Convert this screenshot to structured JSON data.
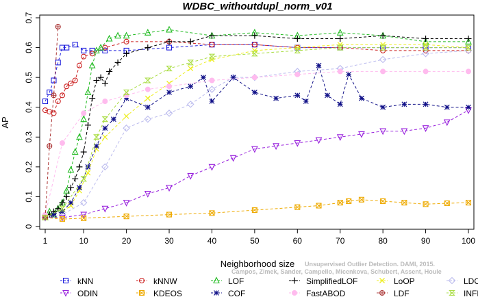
{
  "chart_data": {
    "type": "line",
    "title": "WDBC_withoutdupl_norm_v01",
    "xlabel": "Neighborhood size",
    "ylabel": "AP",
    "xlim": [
      1,
      100
    ],
    "ylim": [
      0,
      0.7
    ],
    "xticks": [
      1,
      10,
      20,
      30,
      40,
      50,
      60,
      70,
      80,
      90,
      100
    ],
    "yticks": [
      0,
      0.1,
      0.2,
      0.3,
      0.4,
      0.5,
      0.6,
      0.7
    ],
    "grid": false,
    "legend_position": "bottom",
    "watermark": [
      "Unsupervised Outlier Detection. DAMI, 2015.",
      "Campos, Zimek, Sander, Campello, Micenkova, Schubert, Assent, Houle"
    ],
    "series": [
      {
        "name": "kNN",
        "color": "#2020dd",
        "marker": "square",
        "x": [
          1,
          2,
          3,
          4,
          5,
          6,
          8,
          10,
          12,
          15,
          20,
          30,
          40,
          50,
          60,
          70,
          80,
          90,
          100
        ],
        "y": [
          0.42,
          0.45,
          0.49,
          0.55,
          0.6,
          0.6,
          0.61,
          0.59,
          0.59,
          0.59,
          0.59,
          0.6,
          0.61,
          0.61,
          0.6,
          0.6,
          0.6,
          0.6,
          0.6
        ]
      },
      {
        "name": "kNNW",
        "color": "#cc2222",
        "marker": "circle",
        "x": [
          1,
          2,
          3,
          4,
          5,
          6,
          7,
          8,
          9,
          10,
          12,
          15,
          20,
          30,
          40,
          50,
          60,
          70,
          80,
          90,
          100
        ],
        "y": [
          0.39,
          0.385,
          0.38,
          0.42,
          0.44,
          0.47,
          0.48,
          0.49,
          0.54,
          0.57,
          0.58,
          0.6,
          0.62,
          0.62,
          0.61,
          0.61,
          0.6,
          0.6,
          0.59,
          0.59,
          0.59
        ]
      },
      {
        "name": "LOF",
        "color": "#22bb22",
        "marker": "triangle",
        "x": [
          1,
          2,
          3,
          4,
          5,
          6,
          7,
          8,
          9,
          10,
          11,
          12,
          13,
          14,
          16,
          18,
          20,
          25,
          30,
          40,
          50,
          60,
          70,
          80,
          90,
          100
        ],
        "y": [
          0.03,
          0.05,
          0.04,
          0.06,
          0.08,
          0.12,
          0.19,
          0.25,
          0.3,
          0.36,
          0.45,
          0.54,
          0.59,
          0.6,
          0.63,
          0.64,
          0.64,
          0.65,
          0.66,
          0.64,
          0.65,
          0.64,
          0.65,
          0.64,
          0.62,
          0.62
        ]
      },
      {
        "name": "SimplifiedLOF",
        "color": "#000000",
        "marker": "plus",
        "x": [
          1,
          2,
          3,
          4,
          5,
          6,
          7,
          8,
          9,
          10,
          11,
          12,
          13,
          14,
          15,
          16,
          18,
          20,
          25,
          30,
          35,
          40,
          50,
          60,
          70,
          80,
          90,
          100
        ],
        "y": [
          0.03,
          0.04,
          0.05,
          0.06,
          0.08,
          0.1,
          0.13,
          0.16,
          0.2,
          0.25,
          0.34,
          0.43,
          0.49,
          0.5,
          0.48,
          0.52,
          0.55,
          0.58,
          0.6,
          0.62,
          0.62,
          0.64,
          0.64,
          0.63,
          0.63,
          0.64,
          0.63,
          0.63
        ]
      },
      {
        "name": "LoOP",
        "color": "#eeee22",
        "marker": "cross",
        "x": [
          1,
          3,
          5,
          7,
          9,
          11,
          13,
          15,
          20,
          25,
          30,
          35,
          40,
          50,
          60,
          70,
          80,
          90,
          100
        ],
        "y": [
          0.03,
          0.04,
          0.05,
          0.07,
          0.12,
          0.18,
          0.26,
          0.3,
          0.37,
          0.43,
          0.48,
          0.53,
          0.56,
          0.59,
          0.6,
          0.61,
          0.61,
          0.61,
          0.6
        ]
      },
      {
        "name": "LDOF",
        "color": "#bbbbee",
        "marker": "diamond",
        "x": [
          1,
          5,
          10,
          15,
          20,
          25,
          30,
          35,
          40,
          45,
          50,
          60,
          70,
          80,
          90,
          100
        ],
        "y": [
          0.03,
          0.04,
          0.08,
          0.2,
          0.33,
          0.36,
          0.38,
          0.41,
          0.46,
          0.5,
          0.5,
          0.52,
          0.53,
          0.56,
          0.58,
          0.59
        ]
      },
      {
        "name": "ODIN",
        "color": "#9922dd",
        "marker": "triangle-down",
        "x": [
          1,
          5,
          10,
          15,
          20,
          25,
          30,
          35,
          40,
          45,
          50,
          55,
          60,
          65,
          70,
          75,
          80,
          85,
          90,
          95,
          100
        ],
        "y": [
          0.03,
          0.03,
          0.04,
          0.06,
          0.08,
          0.11,
          0.13,
          0.17,
          0.2,
          0.23,
          0.26,
          0.27,
          0.28,
          0.29,
          0.3,
          0.31,
          0.32,
          0.32,
          0.33,
          0.35,
          0.39
        ]
      },
      {
        "name": "KDEOS",
        "color": "#eeaa00",
        "marker": "square-x",
        "x": [
          1,
          5,
          10,
          20,
          30,
          40,
          50,
          60,
          65,
          70,
          72,
          75,
          80,
          85,
          90,
          95,
          100
        ],
        "y": [
          0.03,
          0.025,
          0.028,
          0.034,
          0.04,
          0.045,
          0.055,
          0.065,
          0.07,
          0.08,
          0.085,
          0.09,
          0.085,
          0.08,
          0.075,
          0.078,
          0.08
        ]
      },
      {
        "name": "COF",
        "color": "#111188",
        "marker": "star",
        "x": [
          1,
          3,
          5,
          7,
          9,
          11,
          13,
          15,
          17,
          20,
          25,
          30,
          35,
          38,
          40,
          45,
          50,
          55,
          60,
          62,
          65,
          67,
          70,
          72,
          75,
          80,
          85,
          90,
          95,
          100
        ],
        "y": [
          0.03,
          0.04,
          0.05,
          0.08,
          0.13,
          0.2,
          0.27,
          0.33,
          0.36,
          0.43,
          0.4,
          0.45,
          0.47,
          0.5,
          0.42,
          0.5,
          0.45,
          0.43,
          0.44,
          0.42,
          0.54,
          0.44,
          0.41,
          0.51,
          0.43,
          0.4,
          0.41,
          0.41,
          0.4,
          0.4
        ]
      },
      {
        "name": "FastABOD",
        "color": "#ffbbee",
        "marker": "circle-filled",
        "x": [
          1,
          5,
          10,
          15,
          20,
          25,
          30,
          40,
          50,
          60,
          70,
          80,
          90,
          100
        ],
        "y": [
          0.04,
          0.28,
          0.38,
          0.42,
          0.44,
          0.46,
          0.47,
          0.49,
          0.5,
          0.51,
          0.52,
          0.52,
          0.52,
          0.52
        ]
      },
      {
        "name": "LDF",
        "color": "#aa3333",
        "marker": "circle-dot",
        "x": [
          1,
          2,
          3,
          4
        ],
        "y": [
          0.03,
          0.27,
          0.44,
          0.67
        ]
      },
      {
        "name": "INFLO",
        "color": "#aadd44",
        "marker": "hourglass",
        "x": [
          1,
          5,
          10,
          13,
          15,
          20,
          25,
          30,
          35,
          40,
          50,
          60,
          70,
          80,
          90,
          100
        ],
        "y": [
          0.03,
          0.06,
          0.16,
          0.3,
          0.36,
          0.45,
          0.49,
          0.53,
          0.55,
          0.57,
          0.58,
          0.59,
          0.6,
          0.6,
          0.6,
          0.6
        ]
      }
    ]
  }
}
